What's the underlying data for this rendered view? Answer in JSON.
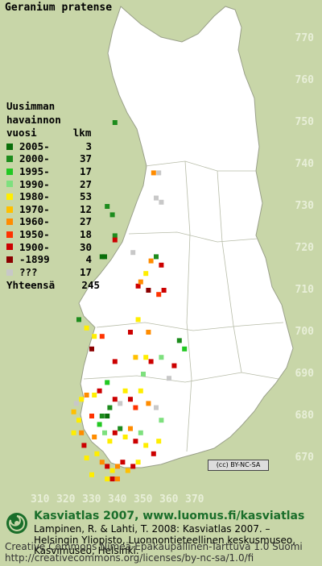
{
  "title": "Geranium pratense",
  "legend": {
    "heading": [
      "Uusimman",
      "havainnon",
      "vuosi      lkm"
    ],
    "items": [
      {
        "label": "2005-",
        "count": "3",
        "color": "#0a6e0a"
      },
      {
        "label": "2000-",
        "count": "37",
        "color": "#1d8c1d"
      },
      {
        "label": "1995-",
        "count": "17",
        "color": "#22c822"
      },
      {
        "label": "1990-",
        "count": "27",
        "color": "#7ee07e"
      },
      {
        "label": "1980-",
        "count": "53",
        "color": "#ffee00"
      },
      {
        "label": "1970-",
        "count": "12",
        "color": "#ffc000"
      },
      {
        "label": "1960-",
        "count": "27",
        "color": "#ff8c00"
      },
      {
        "label": "1950-",
        "count": "18",
        "color": "#ff3300"
      },
      {
        "label": "1900-",
        "count": "30",
        "color": "#cc0000"
      },
      {
        "label": "-1899",
        "count": "4",
        "color": "#8b0000"
      },
      {
        "label": "???",
        "count": "17",
        "color": "#c8c8c8"
      }
    ],
    "total_label": "Yhteensä",
    "total_count": "245"
  },
  "axes": {
    "y_ticks": [
      "770",
      "760",
      "750",
      "740",
      "730",
      "720",
      "710",
      "700",
      "690",
      "680",
      "670"
    ],
    "x_ticks": [
      "310",
      "320",
      "330",
      "340",
      "350",
      "360",
      "370"
    ]
  },
  "license_badge": "(cc) BY-NC-SA",
  "footer": {
    "title": "Kasviatlas 2007, www.luomus.fi/kasviatlas",
    "citation": [
      "Lampinen, R. & Lahti, T. 2008: Kasviatlas 2007. –",
      "Helsingin Yliopisto, Luonnontieteellinen keskusmuseo,",
      "Kasvimuseo, Helsinki."
    ],
    "license": [
      "Creative Commons Nimeä-Epäkaupallinen-Tarttuva 1.0 Suomi",
      "http://creativecommons.org/licenses/by-nc-sa/1.0/fi"
    ]
  },
  "map_points": [
    {
      "e": 339,
      "n": 750,
      "c": 1
    },
    {
      "e": 354,
      "n": 738,
      "c": 6
    },
    {
      "e": 356,
      "n": 738,
      "c": 10
    },
    {
      "e": 355,
      "n": 732,
      "c": 10
    },
    {
      "e": 357,
      "n": 731,
      "c": 10
    },
    {
      "e": 338,
      "n": 728,
      "c": 1
    },
    {
      "e": 336,
      "n": 730,
      "c": 1
    },
    {
      "e": 339,
      "n": 723,
      "c": 1
    },
    {
      "e": 339,
      "n": 722,
      "c": 8
    },
    {
      "e": 334,
      "n": 718,
      "c": 0
    },
    {
      "e": 335,
      "n": 718,
      "c": 0
    },
    {
      "e": 346,
      "n": 719,
      "c": 10
    },
    {
      "e": 355,
      "n": 718,
      "c": 1
    },
    {
      "e": 353,
      "n": 717,
      "c": 6
    },
    {
      "e": 357,
      "n": 716,
      "c": 8
    },
    {
      "e": 351,
      "n": 714,
      "c": 4
    },
    {
      "e": 348,
      "n": 711,
      "c": 8
    },
    {
      "e": 349,
      "n": 712,
      "c": 6
    },
    {
      "e": 352,
      "n": 710,
      "c": 9
    },
    {
      "e": 356,
      "n": 709,
      "c": 7
    },
    {
      "e": 358,
      "n": 710,
      "c": 8
    },
    {
      "e": 325,
      "n": 703,
      "c": 1
    },
    {
      "e": 328,
      "n": 701,
      "c": 4
    },
    {
      "e": 331,
      "n": 699,
      "c": 4
    },
    {
      "e": 345,
      "n": 700,
      "c": 8
    },
    {
      "e": 348,
      "n": 703,
      "c": 4
    },
    {
      "e": 352,
      "n": 700,
      "c": 6
    },
    {
      "e": 364,
      "n": 698,
      "c": 1
    },
    {
      "e": 366,
      "n": 696,
      "c": 2
    },
    {
      "e": 357,
      "n": 694,
      "c": 3
    },
    {
      "e": 351,
      "n": 694,
      "c": 4
    },
    {
      "e": 353,
      "n": 693,
      "c": 8
    },
    {
      "e": 350,
      "n": 690,
      "c": 3
    },
    {
      "e": 347,
      "n": 694,
      "c": 5
    },
    {
      "e": 339,
      "n": 693,
      "c": 8
    },
    {
      "e": 336,
      "n": 688,
      "c": 2
    },
    {
      "e": 333,
      "n": 686,
      "c": 8
    },
    {
      "e": 331,
      "n": 685,
      "c": 4
    },
    {
      "e": 328,
      "n": 685,
      "c": 6
    },
    {
      "e": 326,
      "n": 684,
      "c": 4
    },
    {
      "e": 324,
      "n": 683,
      "c": 10
    },
    {
      "e": 323,
      "n": 681,
      "c": 5
    },
    {
      "e": 325,
      "n": 679,
      "c": 4
    },
    {
      "e": 323,
      "n": 676,
      "c": 4
    },
    {
      "e": 326,
      "n": 676,
      "c": 6
    },
    {
      "e": 330,
      "n": 680,
      "c": 7
    },
    {
      "e": 334,
      "n": 680,
      "c": 1
    },
    {
      "e": 336,
      "n": 680,
      "c": 0
    },
    {
      "e": 337,
      "n": 682,
      "c": 1
    },
    {
      "e": 339,
      "n": 684,
      "c": 8
    },
    {
      "e": 341,
      "n": 683,
      "c": 10
    },
    {
      "e": 343,
      "n": 686,
      "c": 4
    },
    {
      "e": 345,
      "n": 684,
      "c": 8
    },
    {
      "e": 347,
      "n": 682,
      "c": 7
    },
    {
      "e": 349,
      "n": 686,
      "c": 4
    },
    {
      "e": 352,
      "n": 683,
      "c": 6
    },
    {
      "e": 355,
      "n": 682,
      "c": 10
    },
    {
      "e": 335,
      "n": 676,
      "c": 3
    },
    {
      "e": 337,
      "n": 674,
      "c": 4
    },
    {
      "e": 339,
      "n": 676,
      "c": 8
    },
    {
      "e": 341,
      "n": 677,
      "c": 1
    },
    {
      "e": 343,
      "n": 675,
      "c": 4
    },
    {
      "e": 345,
      "n": 677,
      "c": 6
    },
    {
      "e": 347,
      "n": 674,
      "c": 8
    },
    {
      "e": 349,
      "n": 676,
      "c": 3
    },
    {
      "e": 351,
      "n": 673,
      "c": 4
    },
    {
      "e": 354,
      "n": 671,
      "c": 8
    },
    {
      "e": 332,
      "n": 671,
      "c": 4
    },
    {
      "e": 334,
      "n": 669,
      "c": 6
    },
    {
      "e": 336,
      "n": 668,
      "c": 8
    },
    {
      "e": 338,
      "n": 667,
      "c": 4
    },
    {
      "e": 340,
      "n": 668,
      "c": 6
    },
    {
      "e": 342,
      "n": 669,
      "c": 8
    },
    {
      "e": 344,
      "n": 667,
      "c": 5
    },
    {
      "e": 346,
      "n": 668,
      "c": 8
    },
    {
      "e": 348,
      "n": 669,
      "c": 4
    },
    {
      "e": 336,
      "n": 665,
      "c": 4
    },
    {
      "e": 338,
      "n": 665,
      "c": 8
    },
    {
      "e": 340,
      "n": 665,
      "c": 6
    },
    {
      "e": 330,
      "n": 666,
      "c": 4
    },
    {
      "e": 328,
      "n": 670,
      "c": 4
    },
    {
      "e": 327,
      "n": 673,
      "c": 8
    },
    {
      "e": 331,
      "n": 675,
      "c": 6
    },
    {
      "e": 333,
      "n": 678,
      "c": 2
    },
    {
      "e": 357,
      "n": 679,
      "c": 3
    },
    {
      "e": 360,
      "n": 689,
      "c": 10
    },
    {
      "e": 362,
      "n": 692,
      "c": 8
    },
    {
      "e": 330,
      "n": 696,
      "c": 9
    },
    {
      "e": 334,
      "n": 699,
      "c": 7
    },
    {
      "e": 356,
      "n": 674,
      "c": 4
    }
  ]
}
